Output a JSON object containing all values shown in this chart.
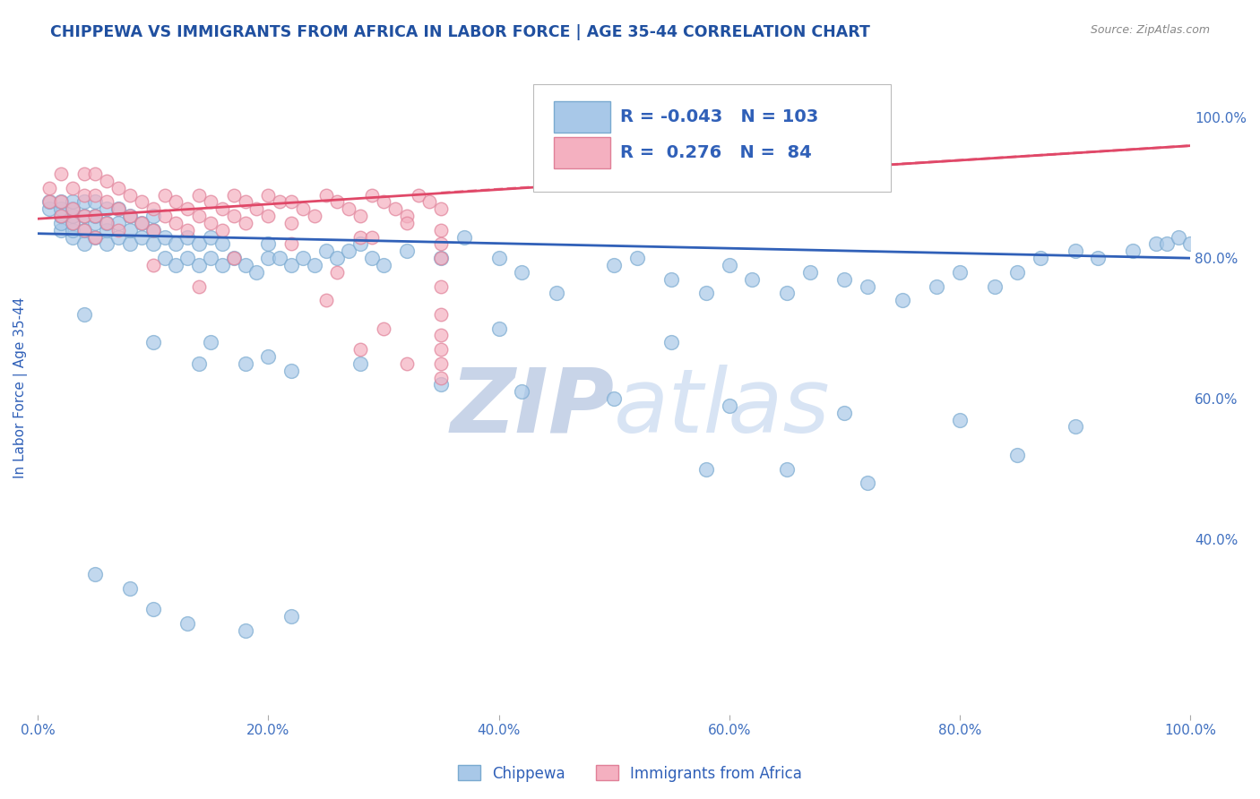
{
  "title": "CHIPPEWA VS IMMIGRANTS FROM AFRICA IN LABOR FORCE | AGE 35-44 CORRELATION CHART",
  "source": "Source: ZipAtlas.com",
  "ylabel": "In Labor Force | Age 35-44",
  "xlim": [
    0.0,
    1.0
  ],
  "ylim": [
    0.15,
    1.08
  ],
  "right_ytick_labels": [
    "100.0%",
    "80.0%",
    "60.0%",
    "40.0%"
  ],
  "right_ytick_values": [
    1.0,
    0.8,
    0.6,
    0.4
  ],
  "xtick_labels": [
    "0.0%",
    "20.0%",
    "40.0%",
    "60.0%",
    "80.0%",
    "100.0%"
  ],
  "xtick_values": [
    0.0,
    0.2,
    0.4,
    0.6,
    0.8,
    1.0
  ],
  "legend_R1": "-0.043",
  "legend_N1": "103",
  "legend_R2": "0.276",
  "legend_N2": "84",
  "chippewa_color": "#a8c8e8",
  "africa_color": "#f4b0c0",
  "chippewa_edge_color": "#7aaad0",
  "africa_edge_color": "#e08098",
  "chippewa_line_color": "#3060b8",
  "africa_line_color": "#e04868",
  "background_color": "#ffffff",
  "grid_color": "#c8d8f0",
  "title_color": "#2050a0",
  "axis_label_color": "#3060b8",
  "tick_color": "#4070c0",
  "watermark_color": "#d0ddf0",
  "chippewa_x": [
    0.01,
    0.01,
    0.02,
    0.02,
    0.02,
    0.02,
    0.02,
    0.03,
    0.03,
    0.03,
    0.03,
    0.03,
    0.03,
    0.04,
    0.04,
    0.04,
    0.04,
    0.05,
    0.05,
    0.05,
    0.05,
    0.06,
    0.06,
    0.06,
    0.06,
    0.07,
    0.07,
    0.07,
    0.08,
    0.08,
    0.08,
    0.09,
    0.09,
    0.1,
    0.1,
    0.1,
    0.11,
    0.11,
    0.12,
    0.12,
    0.13,
    0.13,
    0.14,
    0.14,
    0.15,
    0.15,
    0.16,
    0.16,
    0.17,
    0.18,
    0.19,
    0.2,
    0.2,
    0.21,
    0.22,
    0.23,
    0.24,
    0.25,
    0.26,
    0.27,
    0.28,
    0.29,
    0.3,
    0.32,
    0.35,
    0.37,
    0.4,
    0.42,
    0.45,
    0.5,
    0.52,
    0.55,
    0.58,
    0.6,
    0.62,
    0.65,
    0.67,
    0.7,
    0.72,
    0.75,
    0.78,
    0.8,
    0.83,
    0.85,
    0.87,
    0.9,
    0.92,
    0.95,
    0.97,
    0.98,
    0.99,
    1.0,
    0.15,
    0.18,
    0.22,
    0.28,
    0.35,
    0.42,
    0.5,
    0.6,
    0.7,
    0.8,
    0.9
  ],
  "chippewa_y": [
    0.87,
    0.88,
    0.84,
    0.85,
    0.86,
    0.87,
    0.88,
    0.83,
    0.84,
    0.85,
    0.86,
    0.87,
    0.88,
    0.82,
    0.84,
    0.86,
    0.88,
    0.83,
    0.85,
    0.86,
    0.88,
    0.82,
    0.84,
    0.85,
    0.87,
    0.83,
    0.85,
    0.87,
    0.82,
    0.84,
    0.86,
    0.83,
    0.85,
    0.82,
    0.84,
    0.86,
    0.8,
    0.83,
    0.79,
    0.82,
    0.8,
    0.83,
    0.79,
    0.82,
    0.8,
    0.83,
    0.79,
    0.82,
    0.8,
    0.79,
    0.78,
    0.8,
    0.82,
    0.8,
    0.79,
    0.8,
    0.79,
    0.81,
    0.8,
    0.81,
    0.82,
    0.8,
    0.79,
    0.81,
    0.8,
    0.83,
    0.8,
    0.78,
    0.75,
    0.79,
    0.8,
    0.77,
    0.75,
    0.79,
    0.77,
    0.75,
    0.78,
    0.77,
    0.76,
    0.74,
    0.76,
    0.78,
    0.76,
    0.78,
    0.8,
    0.81,
    0.8,
    0.81,
    0.82,
    0.82,
    0.83,
    0.82,
    0.68,
    0.65,
    0.64,
    0.65,
    0.62,
    0.61,
    0.6,
    0.59,
    0.58,
    0.57,
    0.56
  ],
  "chippewa_outliers_x": [
    0.04,
    0.1,
    0.14,
    0.2,
    0.4,
    0.55,
    0.58,
    0.65,
    0.72,
    0.85
  ],
  "chippewa_outliers_y": [
    0.72,
    0.68,
    0.65,
    0.66,
    0.7,
    0.68,
    0.5,
    0.5,
    0.48,
    0.52
  ],
  "chippewa_low_x": [
    0.05,
    0.08,
    0.1,
    0.13,
    0.18,
    0.22
  ],
  "chippewa_low_y": [
    0.35,
    0.33,
    0.3,
    0.28,
    0.27,
    0.29
  ],
  "africa_x": [
    0.01,
    0.01,
    0.02,
    0.02,
    0.02,
    0.03,
    0.03,
    0.03,
    0.04,
    0.04,
    0.04,
    0.04,
    0.05,
    0.05,
    0.05,
    0.05,
    0.06,
    0.06,
    0.06,
    0.07,
    0.07,
    0.07,
    0.08,
    0.08,
    0.09,
    0.09,
    0.1,
    0.1,
    0.11,
    0.11,
    0.12,
    0.12,
    0.13,
    0.13,
    0.14,
    0.14,
    0.15,
    0.15,
    0.16,
    0.16,
    0.17,
    0.17,
    0.18,
    0.18,
    0.19,
    0.2,
    0.2,
    0.21,
    0.22,
    0.22,
    0.23,
    0.24,
    0.25,
    0.26,
    0.27,
    0.28,
    0.29,
    0.3,
    0.31,
    0.32,
    0.33,
    0.34,
    0.35,
    0.28,
    0.32,
    0.35,
    0.1,
    0.17,
    0.22,
    0.29,
    0.35,
    0.14,
    0.26,
    0.35,
    0.25,
    0.35,
    0.3,
    0.35,
    0.28,
    0.35,
    0.32,
    0.35,
    0.35,
    0.35
  ],
  "africa_y": [
    0.88,
    0.9,
    0.86,
    0.88,
    0.92,
    0.85,
    0.87,
    0.9,
    0.84,
    0.86,
    0.89,
    0.92,
    0.83,
    0.86,
    0.89,
    0.92,
    0.85,
    0.88,
    0.91,
    0.84,
    0.87,
    0.9,
    0.86,
    0.89,
    0.85,
    0.88,
    0.84,
    0.87,
    0.86,
    0.89,
    0.85,
    0.88,
    0.84,
    0.87,
    0.86,
    0.89,
    0.85,
    0.88,
    0.84,
    0.87,
    0.86,
    0.89,
    0.85,
    0.88,
    0.87,
    0.86,
    0.89,
    0.88,
    0.85,
    0.88,
    0.87,
    0.86,
    0.89,
    0.88,
    0.87,
    0.86,
    0.89,
    0.88,
    0.87,
    0.86,
    0.89,
    0.88,
    0.87,
    0.83,
    0.85,
    0.84,
    0.79,
    0.8,
    0.82,
    0.83,
    0.82,
    0.76,
    0.78,
    0.8,
    0.74,
    0.76,
    0.7,
    0.72,
    0.67,
    0.69,
    0.65,
    0.67,
    0.63,
    0.65
  ]
}
